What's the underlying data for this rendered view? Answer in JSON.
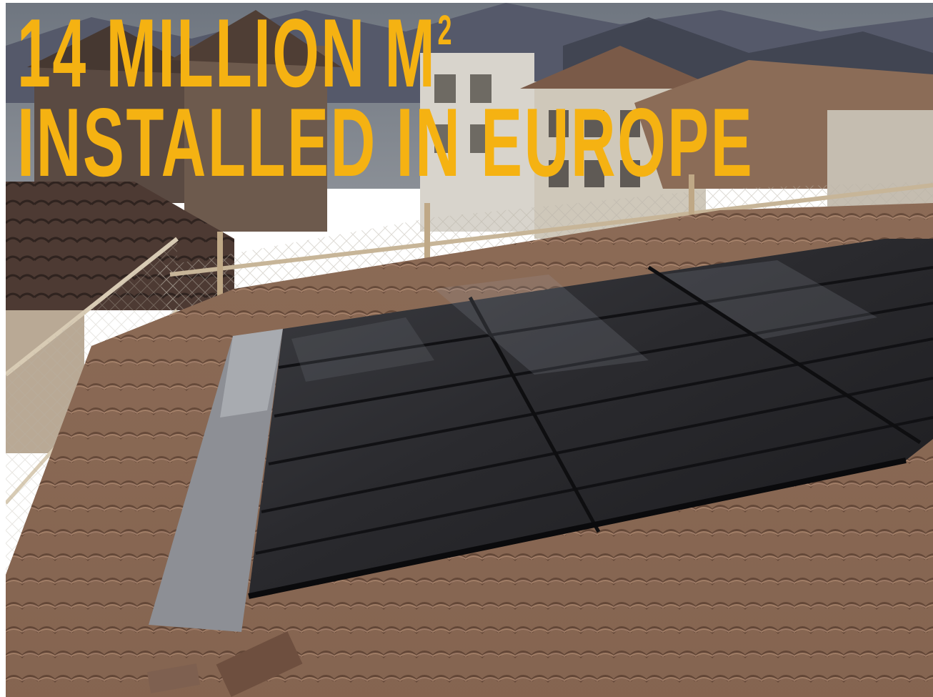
{
  "headline": {
    "line1": "14 MILLION M",
    "superscript": "2",
    "line2": "INSTALLED IN EUROPE",
    "color": "#f5b212"
  },
  "photo": {
    "subject": "solar-panels-on-tiled-roof"
  }
}
